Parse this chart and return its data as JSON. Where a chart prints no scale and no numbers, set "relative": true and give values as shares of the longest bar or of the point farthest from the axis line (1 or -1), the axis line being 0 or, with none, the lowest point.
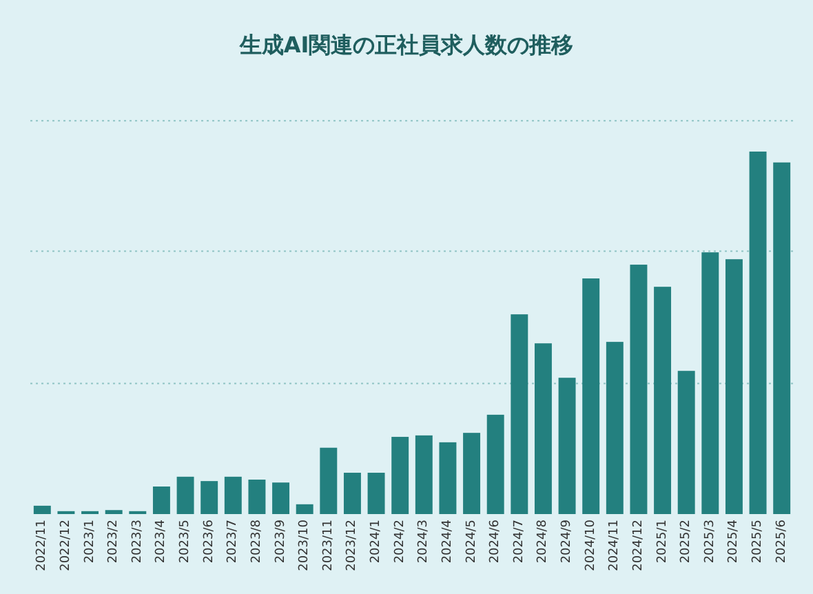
{
  "chart_data": {
    "type": "bar",
    "title": "生成AI関連の正社員求人数の推移",
    "relative": true,
    "categories": [
      "2022/11",
      "2022/12",
      "2023/1",
      "2023/2",
      "2023/3",
      "2023/4",
      "2023/5",
      "2023/6",
      "2023/7",
      "2023/8",
      "2023/9",
      "2023/10",
      "2023/11",
      "2023/12",
      "2024/1",
      "2024/2",
      "2024/3",
      "2024/4",
      "2024/5",
      "2024/6",
      "2024/7",
      "2024/8",
      "2024/9",
      "2024/10",
      "2024/11",
      "2024/12",
      "2025/1",
      "2025/2",
      "2025/3",
      "2025/4",
      "2025/5",
      "2025/6"
    ],
    "values": [
      0.023,
      0.008,
      0.008,
      0.011,
      0.008,
      0.076,
      0.103,
      0.091,
      0.103,
      0.095,
      0.087,
      0.027,
      0.183,
      0.114,
      0.114,
      0.213,
      0.217,
      0.198,
      0.224,
      0.274,
      0.551,
      0.471,
      0.376,
      0.65,
      0.475,
      0.688,
      0.627,
      0.395,
      0.722,
      0.703,
      1,
      0.97
    ],
    "color": "#23807f",
    "ref_lines": [
      {
        "axis": "y",
        "value": 0.36,
        "color": "#8fc4c4",
        "line_style": "dotted"
      },
      {
        "axis": "y",
        "value": 0.725,
        "color": "#8fc4c4",
        "line_style": "dotted"
      },
      {
        "axis": "y",
        "value": 1.085,
        "color": "#8fc4c4",
        "line_style": "dotted"
      }
    ]
  }
}
